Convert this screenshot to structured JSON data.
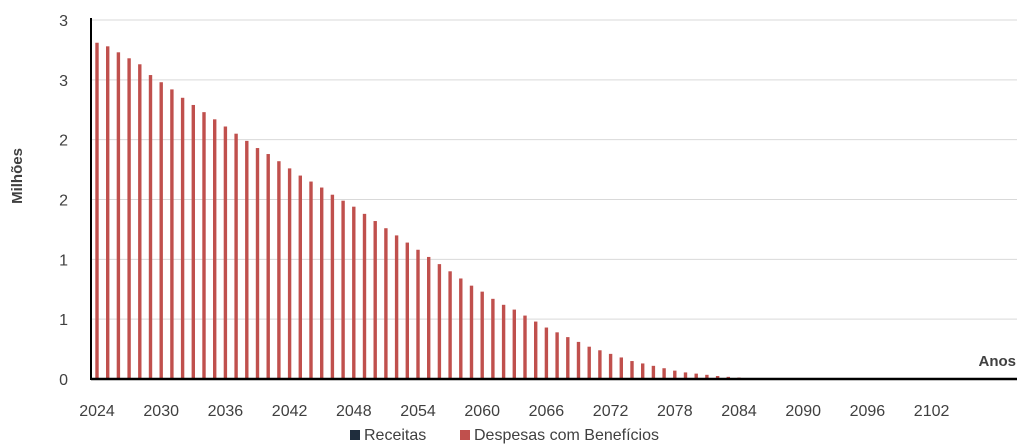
{
  "chart_data": {
    "type": "bar",
    "title": "",
    "xlabel": "Anos",
    "ylabel": "Milhões",
    "grid": true,
    "legend_position": "bottom",
    "ylim": [
      0,
      3
    ],
    "y_tick_values": [
      0,
      0.5,
      1,
      1.5,
      2,
      2.5,
      3
    ],
    "y_tick_labels": [
      "0",
      "1",
      "1",
      "2",
      "2",
      "3",
      "3"
    ],
    "x_tick_labels": [
      "2024",
      "2030",
      "2036",
      "2042",
      "2048",
      "2054",
      "2060",
      "2066",
      "2072",
      "2078",
      "2084",
      "2090",
      "2096",
      "2102"
    ],
    "x_start": 2024,
    "x_end": 2110,
    "series": [
      {
        "name": "Receitas",
        "color": "#1f2d3d",
        "values": []
      },
      {
        "name": "Despesas com Benefícios",
        "color": "#c0504d",
        "values": [
          2.81,
          2.78,
          2.73,
          2.68,
          2.63,
          2.54,
          2.48,
          2.42,
          2.35,
          2.29,
          2.23,
          2.17,
          2.11,
          2.05,
          1.99,
          1.93,
          1.88,
          1.82,
          1.76,
          1.7,
          1.65,
          1.6,
          1.54,
          1.49,
          1.44,
          1.38,
          1.32,
          1.26,
          1.2,
          1.14,
          1.08,
          1.02,
          0.96,
          0.9,
          0.84,
          0.78,
          0.73,
          0.67,
          0.62,
          0.58,
          0.53,
          0.48,
          0.43,
          0.39,
          0.35,
          0.31,
          0.27,
          0.24,
          0.21,
          0.18,
          0.15,
          0.13,
          0.11,
          0.09,
          0.07,
          0.055,
          0.045,
          0.035,
          0.025,
          0.018,
          0.012,
          0.008,
          0.005,
          0.003,
          0.002
        ]
      }
    ]
  }
}
